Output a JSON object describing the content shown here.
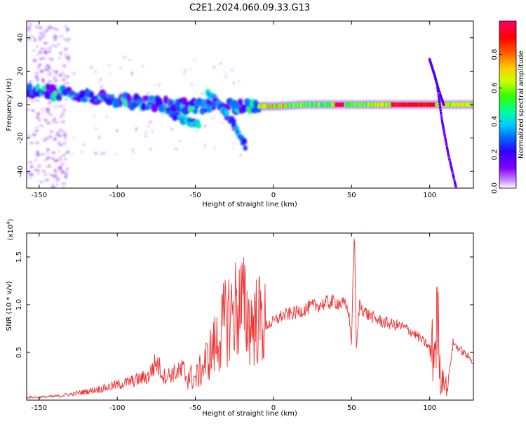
{
  "figure_title": "C2E1.2024.060.09.33.G13",
  "chart_data": [
    {
      "type": "heatmap",
      "title": "C2E1.2024.060.09.33.G13",
      "xlabel": "Height of straight line (km)",
      "ylabel": "Frequency (Hz)",
      "xlim": [
        -158,
        128
      ],
      "ylim": [
        -50,
        50
      ],
      "xticks": [
        -150,
        -100,
        -50,
        0,
        50,
        100
      ],
      "yticks": [
        -40,
        -20,
        0,
        20,
        40
      ],
      "grid": false,
      "colorbar": {
        "label": "Normalized spectral amplitude",
        "range": [
          0,
          1
        ],
        "ticks": [
          0.0,
          0.2,
          0.4,
          0.6,
          0.8
        ],
        "colormap": [
          "#ffffff",
          "#cc99ff",
          "#7f00ff",
          "#3300ff",
          "#0066ff",
          "#00ccff",
          "#00ff99",
          "#33ff00",
          "#ccff00",
          "#ffcc00",
          "#ff6600",
          "#ff0000",
          "#ff0066"
        ]
      },
      "features": [
        {
          "name": "main track",
          "x": [
            -158,
            -130,
            -100,
            -80,
            -60,
            -40,
            -20,
            0,
            20,
            50,
            80,
            105,
            128
          ],
          "y": [
            9,
            6,
            3,
            1,
            -1,
            -1,
            -1,
            -1,
            0,
            0,
            0,
            0,
            0
          ]
        },
        {
          "name": "descending branch A",
          "x": [
            -68,
            -62,
            -55,
            -48
          ],
          "y": [
            -4,
            -7,
            -10,
            -12
          ]
        },
        {
          "name": "descending branch B",
          "x": [
            -42,
            -35,
            -28,
            -22,
            -18
          ],
          "y": [
            8,
            0,
            -8,
            -17,
            -25
          ]
        },
        {
          "name": "rising line",
          "x": [
            100,
            103,
            106,
            109
          ],
          "y": [
            27,
            18,
            8,
            0
          ]
        },
        {
          "name": "falling line",
          "x": [
            105,
            108,
            112,
            117
          ],
          "y": [
            10,
            -10,
            -30,
            -50
          ]
        }
      ]
    },
    {
      "type": "line",
      "title": "",
      "xlabel": "Height of straight line (km)",
      "ylabel": "SNR (10 * v/v)",
      "y_multiplier": "(x10^4)",
      "y_multiplier_base": "(x10",
      "y_multiplier_exp": "4",
      "y_multiplier_close": ")",
      "xlim": [
        -158,
        128
      ],
      "ylim": [
        0,
        1.75
      ],
      "xticks": [
        -150,
        -100,
        -50,
        0,
        50,
        100
      ],
      "yticks": [
        0.5,
        1.0,
        1.5
      ],
      "ytick_labels": [
        "0.5",
        "1.0",
        "1.5"
      ],
      "grid": false,
      "series": [
        {
          "color": "#ee3333",
          "x": [
            -158,
            -150,
            -140,
            -130,
            -120,
            -110,
            -100,
            -90,
            -80,
            -75,
            -70,
            -60,
            -50,
            -45,
            -40,
            -35,
            -30,
            -25,
            -20,
            -15,
            -10,
            -5,
            0,
            5,
            10,
            15,
            20,
            25,
            30,
            35,
            40,
            45,
            48,
            50,
            51,
            52,
            53,
            55,
            60,
            65,
            70,
            75,
            80,
            85,
            90,
            95,
            100,
            103,
            105,
            107,
            109,
            111,
            115,
            120,
            125,
            128
          ],
          "y": [
            0.03,
            0.03,
            0.04,
            0.06,
            0.09,
            0.12,
            0.16,
            0.2,
            0.25,
            0.4,
            0.25,
            0.3,
            0.22,
            0.35,
            0.5,
            0.65,
            0.85,
            0.95,
            1.0,
            0.8,
            0.85,
            0.78,
            0.82,
            0.88,
            0.9,
            0.92,
            0.95,
            0.98,
            1.0,
            1.02,
            1.03,
            1.0,
            0.95,
            0.6,
            1.3,
            1.75,
            0.5,
            1.0,
            0.9,
            0.85,
            0.82,
            0.8,
            0.78,
            0.75,
            0.7,
            0.63,
            0.55,
            0.5,
            0.9,
            0.15,
            0.3,
            0.1,
            0.6,
            0.52,
            0.45,
            0.4
          ]
        }
      ]
    }
  ]
}
